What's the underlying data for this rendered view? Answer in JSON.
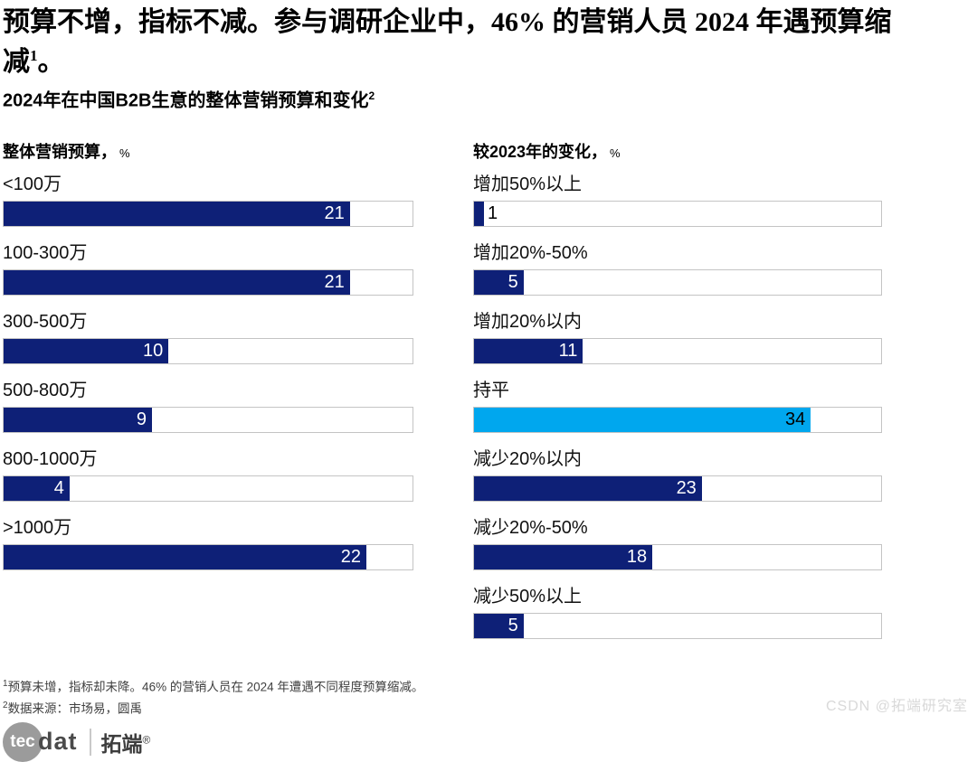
{
  "title": {
    "line1": "预算不增，指标不减。参与调研企业中，46% 的营销人员 2024 年遇预算缩",
    "line2_main": "减",
    "line2_sup": "1",
    "line2_end": "。"
  },
  "subtitle": {
    "main": "2024年在中国B2B生意的整体营销预算和变化",
    "sup": "2"
  },
  "chart_data": [
    {
      "type": "bar",
      "orientation": "horizontal",
      "title_main": "整体营销预算，",
      "title_unit": "%",
      "categories": [
        "<100万",
        "100-300万",
        "300-500万",
        "500-800万",
        "800-1000万",
        ">1000万"
      ],
      "values": [
        21,
        21,
        10,
        9,
        4,
        22
      ],
      "xlim": [
        0,
        24.8
      ],
      "bar_color": "#0E2077",
      "value_label_color": "#ffffff",
      "grid": false,
      "legend": false
    },
    {
      "type": "bar",
      "orientation": "horizontal",
      "title_main": "较2023年的变化，",
      "title_unit": "%",
      "categories": [
        "增加50%以上",
        "增加20%-50%",
        "增加20%以内",
        "持平",
        "减少20%以内",
        "减少20%-50%",
        "减少50%以上"
      ],
      "values": [
        1,
        5,
        11,
        34,
        23,
        18,
        5
      ],
      "xlim": [
        0,
        41.1
      ],
      "bar_color": "#0E2077",
      "value_label_color": "#ffffff",
      "highlight_index": 3,
      "highlight_color": "#00A7EE",
      "highlight_value_label_color": "#000000",
      "grid": false,
      "legend": false
    }
  ],
  "footnotes": [
    {
      "sup": "1",
      "text": "预算未增，指标却未降。46% 的营销人员在 2024 年遭遇不同程度预算缩减。"
    },
    {
      "sup": "2",
      "text": "数据来源：市场易，圆禹"
    }
  ],
  "logo": {
    "circle_text": "tec",
    "dat_text": "dat",
    "brand": "拓端",
    "reg": "®"
  },
  "watermark": "CSDN @拓端研究室"
}
